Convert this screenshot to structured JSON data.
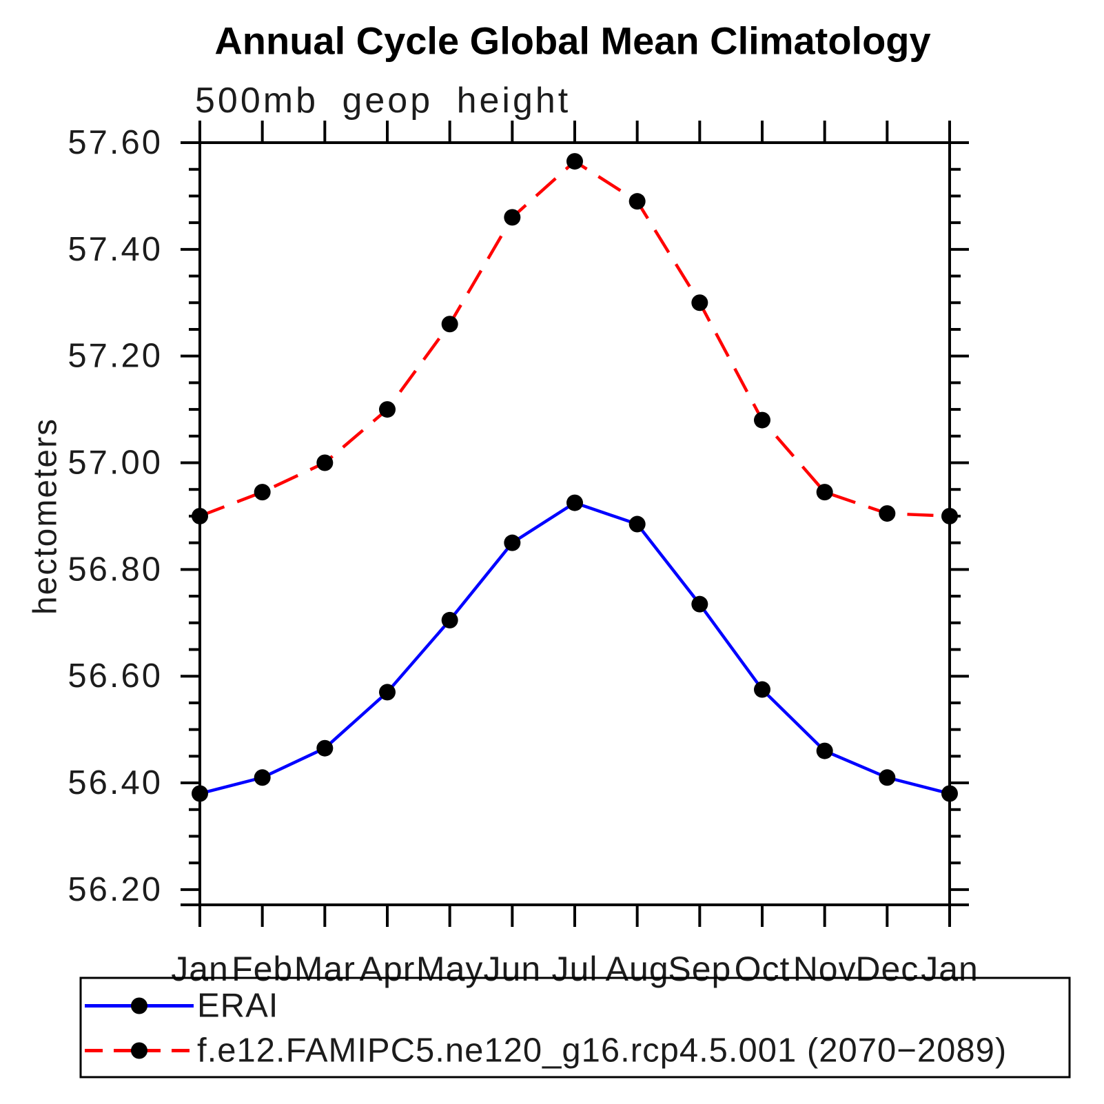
{
  "chart_data": {
    "type": "line",
    "title": "Annual Cycle Global Mean Climatology",
    "subtitle": "500mb geop height",
    "ylabel": "hectometers",
    "xlabel": "",
    "categories": [
      "Jan",
      "Feb",
      "Mar",
      "Apr",
      "May",
      "Jun",
      "Jul",
      "Aug",
      "Sep",
      "Oct",
      "Nov",
      "Dec",
      "Jan"
    ],
    "series": [
      {
        "name": "ERAI",
        "color": "#0000ff",
        "line_style": "solid",
        "values": [
          56.38,
          56.41,
          56.465,
          56.57,
          56.705,
          56.85,
          56.925,
          56.885,
          56.735,
          56.575,
          56.46,
          56.41,
          56.38
        ]
      },
      {
        "name": "f.e12.FAMIPC5.ne120_g16.rcp4.5.001 (2070−2089)",
        "color": "#ff0000",
        "line_style": "dashed",
        "values": [
          56.9,
          56.945,
          57.0,
          57.1,
          57.26,
          57.46,
          57.565,
          57.49,
          57.3,
          57.08,
          56.945,
          56.905,
          56.9
        ]
      }
    ],
    "marker": {
      "shape": "circle",
      "color": "#000000"
    },
    "y_axis": {
      "tick_min": 56.2,
      "tick_max": 57.6,
      "major_step": 0.2,
      "minor_step": 0.05,
      "major_tick_labels": [
        "57.60",
        "57.40",
        "57.20",
        "57.00",
        "56.80",
        "56.60",
        "56.40",
        "56.20"
      ]
    },
    "grid": "off",
    "legend_position": "bottom",
    "frame_color": "#000000",
    "background_color": "#ffffff"
  }
}
